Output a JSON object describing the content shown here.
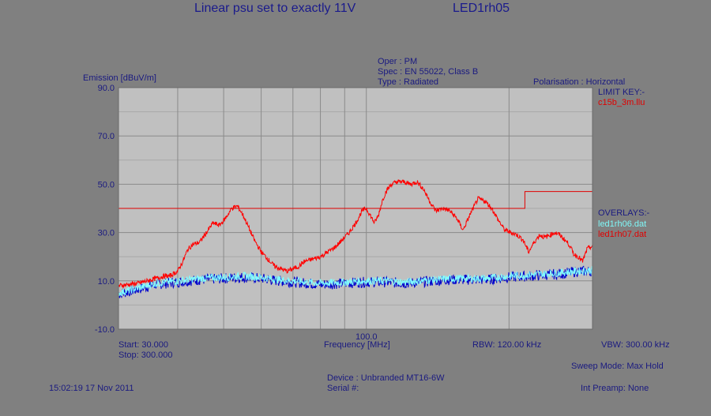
{
  "header": {
    "title": "Linear psu set to exactly 11V",
    "file_id": "LED1rh05"
  },
  "meta": {
    "oper": "Oper : PM",
    "spec": "Spec : EN 55022, Class B",
    "type": "Type : Radiated",
    "polarisation": "Polarisation : Horizontal"
  },
  "legend": {
    "limit_key_title": "LIMIT KEY:-",
    "limit_file": "c15b_3m.llu",
    "overlays_title": "OVERLAYS:-",
    "overlay_1": "led1rh06.dat",
    "overlay_2": "led1rh07.dat"
  },
  "footer": {
    "start": "Start: 30.000",
    "stop": "Stop: 300.000",
    "rbw": "RBW: 120.00 kHz",
    "vbw": "VBW: 300.00 kHz",
    "sweep_mode": "Sweep Mode: Max Hold",
    "device": "Device : Unbranded MT16-6W",
    "serial": "Serial #:",
    "timestamp": "15:02:19 17 Nov 2011",
    "preamp": "Int Preamp: None"
  },
  "colors": {
    "background": "#808080",
    "plot_background": "#c0c0c0",
    "grid": "#8a8a8a",
    "main_trace": "#ff0000",
    "limit_line": "#e00000",
    "overlay_cyan": "#80ffff",
    "overlay_blue": "#0000cc"
  },
  "chart_data": {
    "type": "line",
    "title": "Linear psu set to exactly 11V",
    "ylabel": "Emission [dBuV/m]",
    "xlabel": "Frequency [MHz]",
    "x_scale": "log",
    "xlim": [
      30,
      300
    ],
    "ylim": [
      -10,
      90
    ],
    "y_ticks": [
      "90.0",
      "70.0",
      "50.0",
      "30.0",
      "10.0",
      "-10.0"
    ],
    "y_tick_values": [
      90,
      70,
      50,
      30,
      10,
      -10
    ],
    "x_tick_labels": [
      "100.0"
    ],
    "x_tick_values": [
      100
    ],
    "x_minor_values": [
      40,
      50,
      60,
      70,
      80,
      90,
      200
    ],
    "grid": true,
    "limit_line": {
      "name": "c15b_3m.llu",
      "points": [
        [
          30,
          40
        ],
        [
          216,
          40
        ],
        [
          216,
          47
        ],
        [
          300,
          47
        ]
      ]
    },
    "series": [
      {
        "name": "led1rh07.dat",
        "color": "#ff0000",
        "x": [
          30,
          31.5,
          33,
          34.5,
          36,
          37.5,
          38.5,
          40,
          41,
          42,
          43,
          44.5,
          46,
          47.5,
          49,
          50.5,
          52,
          53.5,
          55,
          56.5,
          58,
          60,
          62,
          64,
          66,
          68,
          70,
          72,
          74,
          77,
          80,
          83,
          86,
          89,
          92,
          95,
          98,
          100,
          102,
          104,
          106,
          108,
          110,
          113,
          116,
          120,
          124,
          128,
          132,
          136,
          140,
          145,
          150,
          155,
          160,
          166,
          172,
          178,
          184,
          190,
          196,
          202,
          208,
          214,
          220,
          226,
          232,
          238,
          244,
          250,
          256,
          262,
          268,
          274,
          280,
          286,
          292,
          296,
          300
        ],
        "y": [
          8,
          8.5,
          9,
          10,
          11,
          12,
          12,
          14,
          18,
          23,
          25,
          26,
          30,
          34,
          33,
          36,
          40,
          41,
          37,
          32,
          27,
          22,
          19,
          16,
          15,
          14,
          15,
          16,
          18,
          19,
          20,
          22,
          24,
          27,
          30,
          34,
          39,
          40,
          37,
          34,
          37,
          43,
          47,
          50,
          51,
          51,
          50,
          51,
          48,
          43,
          39,
          40,
          39,
          36,
          31,
          38,
          44,
          43,
          40,
          35,
          31,
          30,
          29,
          27,
          22,
          26,
          29,
          28,
          29,
          30,
          29,
          27,
          25,
          21,
          20,
          18,
          23,
          24,
          24
        ]
      },
      {
        "name": "led1rh06.dat",
        "color": "#80ffff",
        "x": [
          30,
          33,
          36,
          40,
          45,
          50,
          55,
          60,
          65,
          70,
          75,
          80,
          90,
          100,
          110,
          120,
          130,
          140,
          150,
          160,
          170,
          180,
          190,
          200,
          220,
          240,
          260,
          280,
          300
        ],
        "y": [
          5,
          7,
          9,
          10,
          11,
          11.5,
          12,
          11.5,
          10.5,
          10,
          9.5,
          9,
          9.5,
          10,
          10,
          9.5,
          10,
          10.5,
          11,
          11,
          11,
          11,
          11.5,
          12,
          12.5,
          13,
          13.5,
          14,
          14.5
        ]
      },
      {
        "name": "",
        "color": "#0000cc",
        "x": [
          30,
          33,
          36,
          40,
          45,
          50,
          55,
          60,
          65,
          70,
          75,
          80,
          90,
          100,
          110,
          120,
          130,
          140,
          150,
          160,
          170,
          180,
          190,
          200,
          220,
          240,
          260,
          280,
          300
        ],
        "y": [
          4.5,
          6.5,
          8.5,
          9.5,
          10.5,
          11,
          11.5,
          11,
          10,
          9.5,
          9,
          8.5,
          9,
          9.5,
          9.5,
          9,
          9.5,
          10,
          10.5,
          10.5,
          10.5,
          10.5,
          11,
          11.5,
          12,
          12.5,
          13,
          14,
          14
        ]
      }
    ]
  }
}
